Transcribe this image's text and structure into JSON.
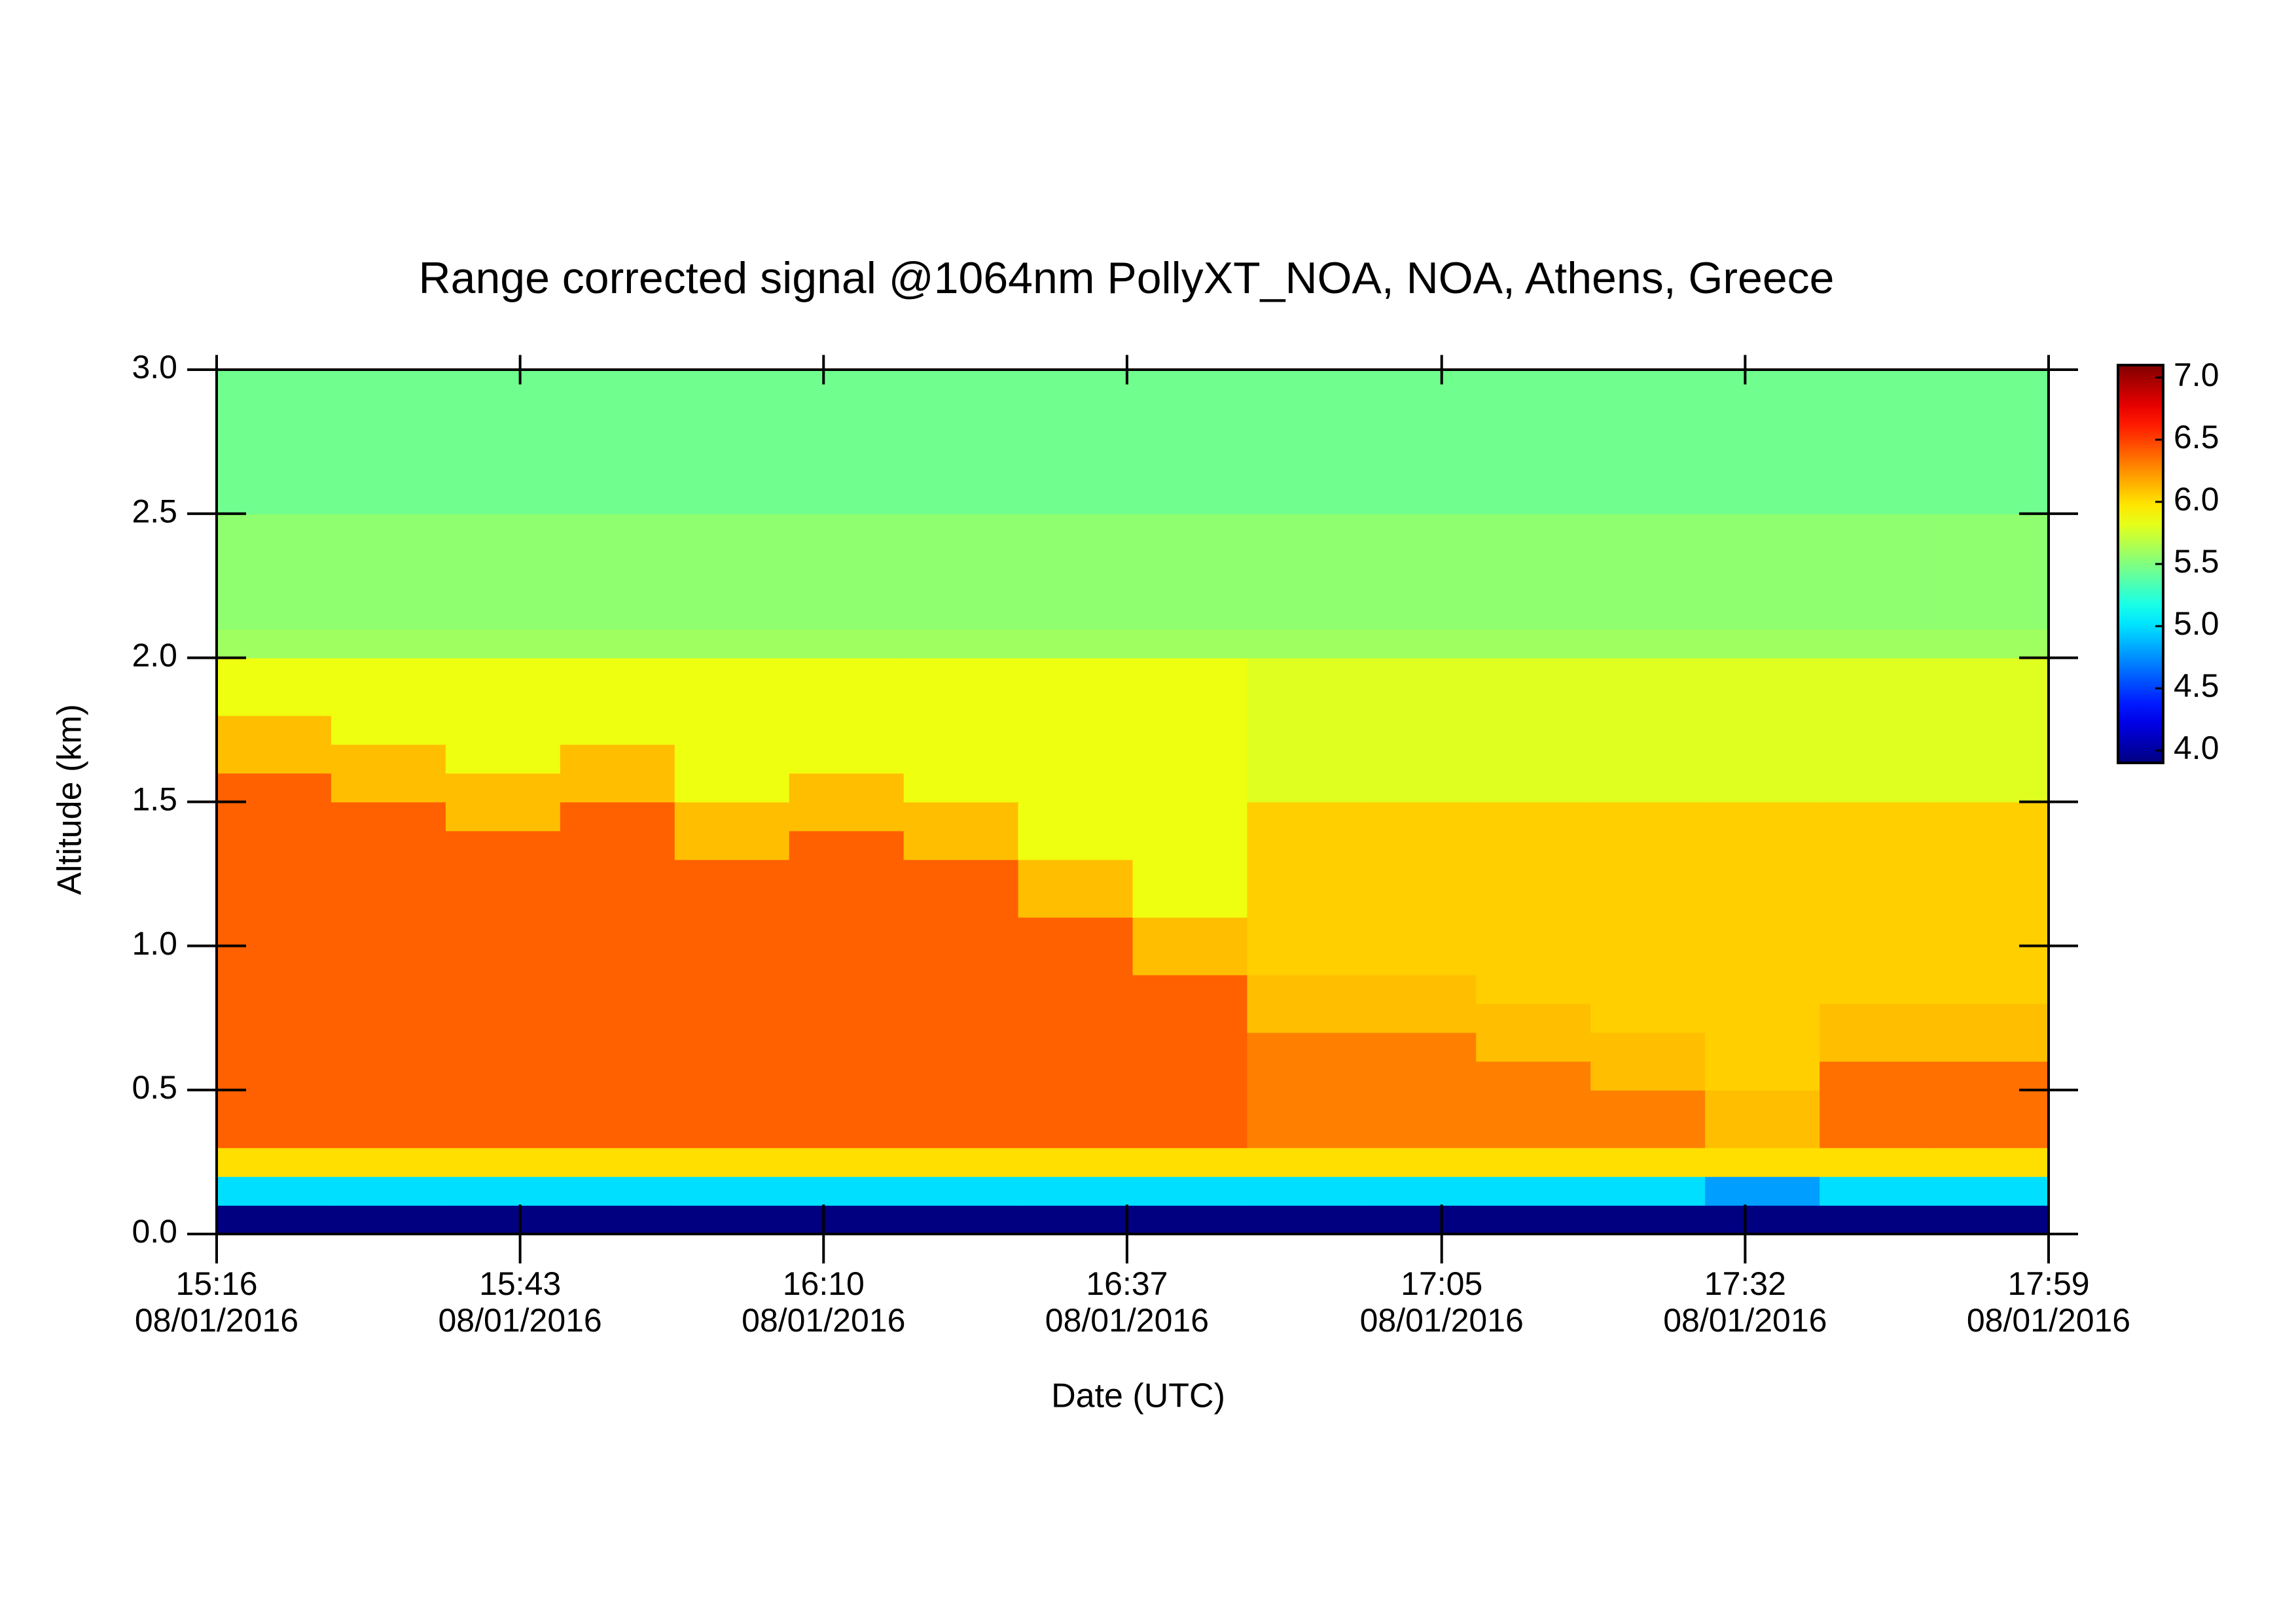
{
  "chart_data": {
    "type": "heatmap",
    "title": "Range corrected signal @1064nm  PollyXT_NOA, NOA, Athens, Greece",
    "xlabel": "Date (UTC)",
    "ylabel": "Altitude (km)",
    "colormap": "jet",
    "xlim": [
      "15:16",
      "17:59"
    ],
    "xticks": [
      {
        "value": "15:16",
        "label": [
          "15:16",
          "08/01/2016"
        ]
      },
      {
        "value": "15:43",
        "label": [
          "15:43",
          "08/01/2016"
        ]
      },
      {
        "value": "16:10",
        "label": [
          "16:10",
          "08/01/2016"
        ]
      },
      {
        "value": "16:37",
        "label": [
          "16:37",
          "08/01/2016"
        ]
      },
      {
        "value": "17:05",
        "label": [
          "17:05",
          "08/01/2016"
        ]
      },
      {
        "value": "17:32",
        "label": [
          "17:32",
          "08/01/2016"
        ]
      },
      {
        "value": "17:59",
        "label": [
          "17:59",
          "08/01/2016"
        ]
      }
    ],
    "ylim": [
      0,
      3
    ],
    "yticks": [
      {
        "value": 0,
        "label": "0.0"
      },
      0.5,
      {
        "value": 1,
        "label": "1.0"
      },
      1.5,
      {
        "value": 2,
        "label": "2.0"
      },
      2.5,
      {
        "value": 3,
        "label": "3.0"
      }
    ],
    "zlim": [
      3.9,
      7.1
    ],
    "zticks": [
      {
        "value": 4,
        "label": "4.0"
      },
      4.5,
      {
        "value": 5,
        "label": "5.0"
      },
      5.5,
      {
        "value": 6,
        "label": "6.0"
      },
      6.5,
      {
        "value": 7,
        "label": "7.0"
      }
    ],
    "z": [
      [
        3.9,
        3.9,
        3.9,
        3.9,
        3.9,
        3.9,
        3.9,
        3.9,
        3.9,
        3.9,
        3.9,
        3.9,
        3.9,
        3.9,
        3.9,
        3.9
      ],
      [
        5.0,
        5.0,
        5.0,
        5.0,
        5.0,
        5.0,
        5.0,
        5.0,
        5.0,
        5.0,
        5.0,
        5.0,
        5.0,
        4.8,
        5.0,
        5.0
      ],
      [
        6.0,
        6.0,
        6.0,
        6.0,
        6.0,
        6.0,
        6.0,
        6.0,
        6.0,
        6.0,
        6.0,
        6.0,
        6.0,
        6.0,
        6.0,
        6.0
      ],
      [
        6.4,
        6.4,
        6.4,
        6.4,
        6.4,
        6.4,
        6.4,
        6.4,
        6.4,
        6.3,
        6.3,
        6.3,
        6.3,
        6.1,
        6.35,
        6.35
      ],
      [
        6.4,
        6.4,
        6.4,
        6.4,
        6.4,
        6.4,
        6.4,
        6.4,
        6.4,
        6.3,
        6.3,
        6.3,
        6.3,
        6.1,
        6.35,
        6.35
      ],
      [
        6.4,
        6.4,
        6.4,
        6.4,
        6.4,
        6.4,
        6.4,
        6.4,
        6.4,
        6.3,
        6.3,
        6.3,
        6.1,
        6.05,
        6.35,
        6.35
      ],
      [
        6.4,
        6.4,
        6.4,
        6.4,
        6.4,
        6.4,
        6.4,
        6.4,
        6.4,
        6.3,
        6.3,
        6.1,
        6.1,
        6.05,
        6.1,
        6.1
      ],
      [
        6.4,
        6.4,
        6.4,
        6.4,
        6.4,
        6.4,
        6.4,
        6.4,
        6.4,
        6.1,
        6.1,
        6.1,
        6.05,
        6.05,
        6.1,
        6.1
      ],
      [
        6.4,
        6.4,
        6.4,
        6.4,
        6.4,
        6.4,
        6.4,
        6.4,
        6.4,
        6.1,
        6.1,
        6.05,
        6.05,
        6.05,
        6.05,
        6.05
      ],
      [
        6.4,
        6.4,
        6.4,
        6.4,
        6.4,
        6.4,
        6.4,
        6.4,
        6.1,
        6.05,
        6.05,
        6.05,
        6.05,
        6.05,
        6.05,
        6.05
      ],
      [
        6.4,
        6.4,
        6.4,
        6.4,
        6.4,
        6.4,
        6.4,
        6.4,
        6.1,
        6.05,
        6.05,
        6.05,
        6.05,
        6.05,
        6.05,
        6.05
      ],
      [
        6.4,
        6.4,
        6.4,
        6.4,
        6.4,
        6.4,
        6.4,
        6.1,
        5.85,
        6.05,
        6.05,
        6.05,
        6.05,
        6.05,
        6.05,
        6.05
      ],
      [
        6.4,
        6.4,
        6.4,
        6.4,
        6.4,
        6.4,
        6.4,
        6.1,
        5.85,
        6.05,
        6.05,
        6.05,
        6.05,
        6.05,
        6.05,
        6.05
      ],
      [
        6.4,
        6.4,
        6.4,
        6.4,
        6.1,
        6.4,
        6.1,
        5.85,
        5.85,
        6.05,
        6.05,
        6.05,
        6.05,
        6.05,
        6.05,
        6.05
      ],
      [
        6.4,
        6.4,
        6.1,
        6.4,
        6.1,
        6.1,
        6.1,
        5.85,
        5.85,
        6.05,
        6.05,
        6.05,
        6.05,
        6.05,
        6.05,
        6.05
      ],
      [
        6.4,
        6.1,
        6.1,
        6.1,
        5.85,
        6.1,
        5.85,
        5.85,
        5.85,
        5.8,
        5.8,
        5.8,
        5.8,
        5.8,
        5.8,
        5.8
      ],
      [
        6.1,
        6.1,
        5.85,
        6.1,
        5.85,
        5.85,
        5.85,
        5.85,
        5.85,
        5.8,
        5.8,
        5.8,
        5.8,
        5.8,
        5.8,
        5.8
      ],
      [
        6.1,
        5.85,
        5.85,
        5.85,
        5.85,
        5.85,
        5.85,
        5.85,
        5.85,
        5.8,
        5.8,
        5.8,
        5.8,
        5.8,
        5.8,
        5.8
      ],
      [
        5.85,
        5.85,
        5.85,
        5.85,
        5.85,
        5.85,
        5.85,
        5.85,
        5.85,
        5.8,
        5.8,
        5.8,
        5.8,
        5.8,
        5.8,
        5.8
      ],
      [
        5.85,
        5.85,
        5.85,
        5.85,
        5.85,
        5.85,
        5.85,
        5.85,
        5.85,
        5.8,
        5.8,
        5.8,
        5.8,
        5.8,
        5.8,
        5.8
      ],
      [
        5.6,
        5.6,
        5.6,
        5.6,
        5.6,
        5.6,
        5.6,
        5.6,
        5.6,
        5.6,
        5.6,
        5.6,
        5.6,
        5.6,
        5.6,
        5.6
      ],
      [
        5.55,
        5.55,
        5.55,
        5.55,
        5.55,
        5.55,
        5.55,
        5.55,
        5.55,
        5.55,
        5.55,
        5.55,
        5.55,
        5.55,
        5.55,
        5.55
      ],
      [
        5.55,
        5.55,
        5.55,
        5.55,
        5.55,
        5.55,
        5.55,
        5.55,
        5.55,
        5.55,
        5.55,
        5.55,
        5.55,
        5.55,
        5.55,
        5.55
      ],
      [
        5.55,
        5.55,
        5.55,
        5.55,
        5.55,
        5.55,
        5.55,
        5.55,
        5.55,
        5.55,
        5.55,
        5.55,
        5.55,
        5.55,
        5.55,
        5.55
      ],
      [
        5.55,
        5.55,
        5.55,
        5.55,
        5.55,
        5.55,
        5.55,
        5.55,
        5.55,
        5.55,
        5.55,
        5.55,
        5.55,
        5.55,
        5.55,
        5.55
      ],
      [
        5.45,
        5.45,
        5.45,
        5.45,
        5.45,
        5.45,
        5.45,
        5.45,
        5.45,
        5.45,
        5.45,
        5.45,
        5.45,
        5.45,
        5.45,
        5.45
      ],
      [
        5.45,
        5.45,
        5.45,
        5.45,
        5.45,
        5.45,
        5.45,
        5.45,
        5.45,
        5.45,
        5.45,
        5.45,
        5.45,
        5.45,
        5.45,
        5.45
      ],
      [
        5.45,
        5.45,
        5.45,
        5.45,
        5.45,
        5.45,
        5.45,
        5.45,
        5.45,
        5.45,
        5.45,
        5.45,
        5.45,
        5.45,
        5.45,
        5.45
      ],
      [
        5.45,
        5.45,
        5.45,
        5.45,
        5.45,
        5.45,
        5.45,
        5.45,
        5.45,
        5.45,
        5.45,
        5.45,
        5.45,
        5.45,
        5.45,
        5.45
      ],
      [
        5.45,
        5.45,
        5.45,
        5.45,
        5.45,
        5.45,
        5.45,
        5.45,
        5.45,
        5.45,
        5.45,
        5.45,
        5.45,
        5.45,
        5.45,
        5.45
      ]
    ]
  }
}
